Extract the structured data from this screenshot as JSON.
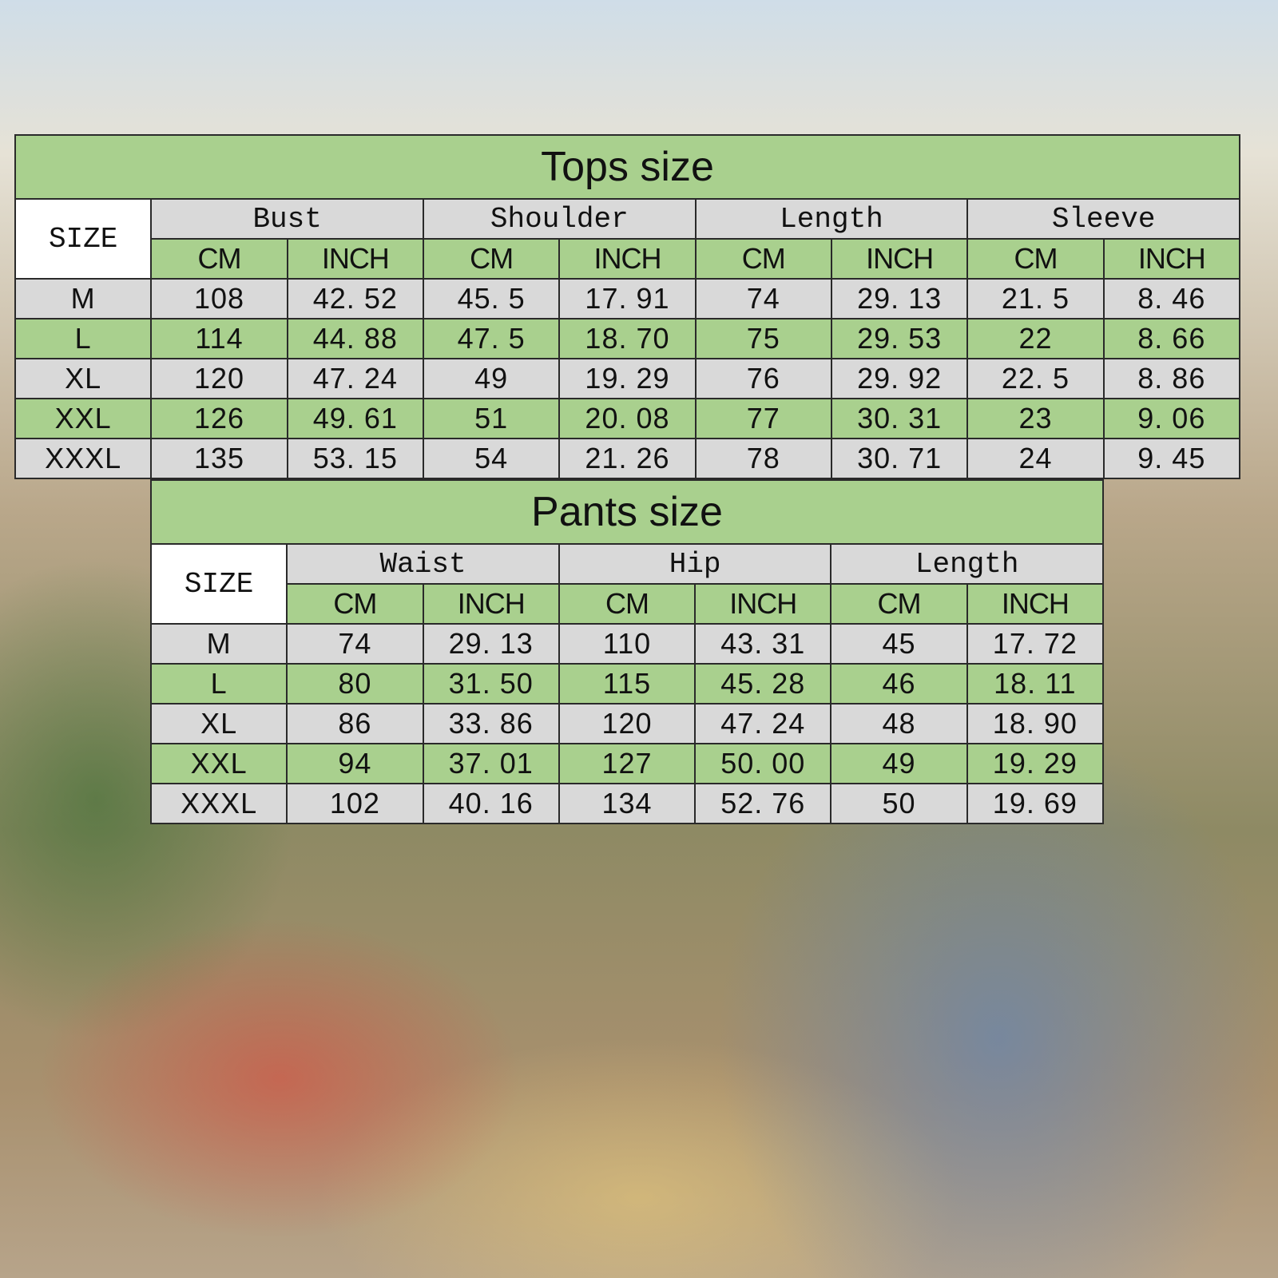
{
  "tops": {
    "title": "Tops size",
    "size_label": "SIZE",
    "groups": [
      "Bust",
      "Shoulder",
      "Length",
      "Sleeve"
    ],
    "units": [
      "CM",
      "INCH"
    ],
    "rows": [
      {
        "size": "M",
        "values": [
          "108",
          "42. 52",
          "45. 5",
          "17. 91",
          "74",
          "29. 13",
          "21. 5",
          "8. 46"
        ]
      },
      {
        "size": "L",
        "values": [
          "114",
          "44. 88",
          "47. 5",
          "18. 70",
          "75",
          "29. 53",
          "22",
          "8. 66"
        ]
      },
      {
        "size": "XL",
        "values": [
          "120",
          "47. 24",
          "49",
          "19. 29",
          "76",
          "29. 92",
          "22. 5",
          "8. 86"
        ]
      },
      {
        "size": "XXL",
        "values": [
          "126",
          "49. 61",
          "51",
          "20. 08",
          "77",
          "30. 31",
          "23",
          "9. 06"
        ]
      },
      {
        "size": "XXXL",
        "values": [
          "135",
          "53. 15",
          "54",
          "21. 26",
          "78",
          "30. 71",
          "24",
          "9. 45"
        ]
      }
    ]
  },
  "pants": {
    "title": "Pants size",
    "size_label": "SIZE",
    "groups": [
      "Waist",
      "Hip",
      "Length"
    ],
    "units": [
      "CM",
      "INCH"
    ],
    "rows": [
      {
        "size": "M",
        "values": [
          "74",
          "29. 13",
          "110",
          "43. 31",
          "45",
          "17. 72"
        ]
      },
      {
        "size": "L",
        "values": [
          "80",
          "31. 50",
          "115",
          "45. 28",
          "46",
          "18. 11"
        ]
      },
      {
        "size": "XL",
        "values": [
          "86",
          "33. 86",
          "120",
          "47. 24",
          "48",
          "18. 90"
        ]
      },
      {
        "size": "XXL",
        "values": [
          "94",
          "37. 01",
          "127",
          "50. 00",
          "49",
          "19. 29"
        ]
      },
      {
        "size": "XXXL",
        "values": [
          "102",
          "40. 16",
          "134",
          "52. 76",
          "50",
          "19. 69"
        ]
      }
    ]
  },
  "colors": {
    "green": "#a9d08e",
    "gray": "#d9d9d9",
    "white": "#ffffff"
  }
}
